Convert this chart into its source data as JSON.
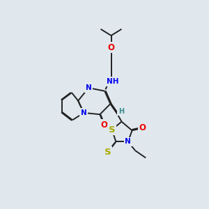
{
  "bg_color": "#e0e8ee",
  "bond_color": "#222222",
  "bond_width": 1.4,
  "dbo": 0.055,
  "atom_colors": {
    "N": "#0000ee",
    "O": "#ee0000",
    "S": "#aaaa00",
    "H": "#3a8a8a",
    "C": "#222222"
  },
  "fs": 7.5
}
